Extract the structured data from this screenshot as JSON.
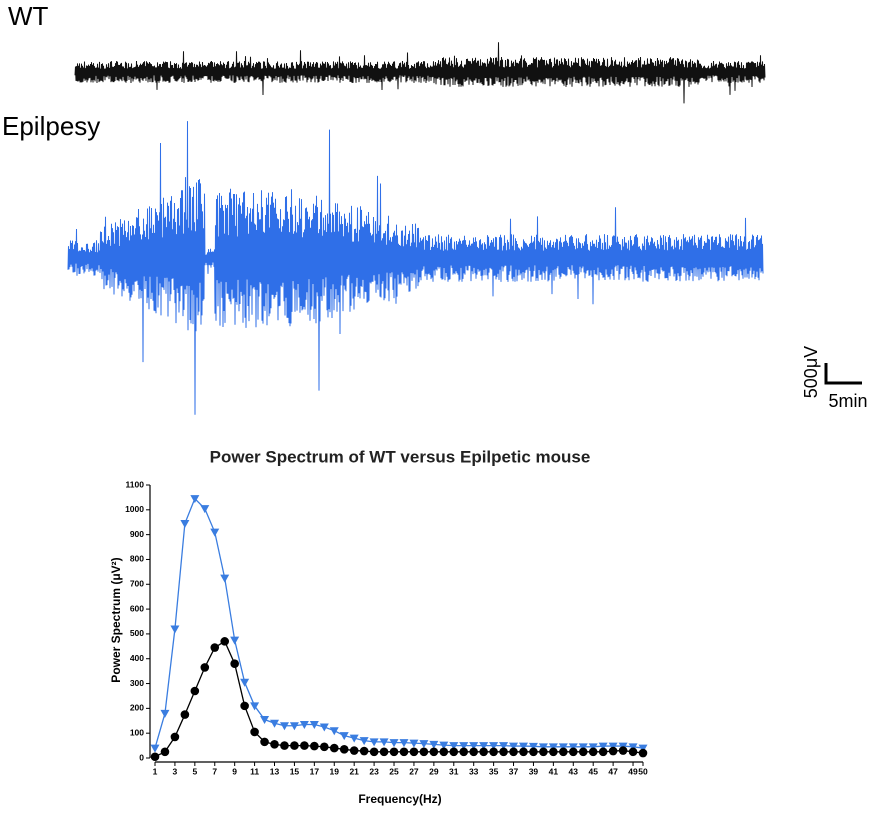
{
  "labels": {
    "wt": "WT",
    "epilepsy": "Epilpesy",
    "scale_v": "500μV",
    "scale_t": "5min"
  },
  "chart_data": {
    "type": "line",
    "title": "Power Spectrum of WT versus Epilpetic mouse",
    "x_label": "Frequency(Hz)",
    "y_label": "Power Spectrum (μV²)",
    "x": [
      1,
      2,
      3,
      4,
      5,
      6,
      7,
      8,
      9,
      10,
      11,
      12,
      13,
      14,
      15,
      16,
      17,
      18,
      19,
      20,
      21,
      22,
      23,
      24,
      25,
      26,
      27,
      28,
      29,
      30,
      31,
      32,
      33,
      34,
      35,
      36,
      37,
      38,
      39,
      40,
      41,
      42,
      43,
      44,
      45,
      46,
      47,
      48,
      49,
      50
    ],
    "xlim": [
      1,
      50
    ],
    "xticks": [
      1,
      3,
      5,
      7,
      9,
      11,
      13,
      15,
      17,
      19,
      21,
      23,
      25,
      27,
      29,
      31,
      33,
      35,
      37,
      39,
      41,
      43,
      45,
      47,
      49,
      50
    ],
    "ylim": [
      0,
      1100
    ],
    "yticks": [
      0,
      100,
      200,
      300,
      400,
      500,
      600,
      700,
      800,
      900,
      1000,
      1100
    ],
    "series": [
      {
        "color": "#3a7de0",
        "marker": "triangle-down",
        "values": [
          40,
          180,
          520,
          945,
          1045,
          1005,
          910,
          725,
          475,
          305,
          210,
          155,
          140,
          130,
          130,
          135,
          135,
          125,
          110,
          90,
          80,
          70,
          65,
          65,
          62,
          62,
          60,
          58,
          55,
          52,
          50,
          50,
          50,
          50,
          50,
          50,
          48,
          48,
          47,
          45,
          45,
          45,
          45,
          45,
          45,
          48,
          48,
          48,
          45,
          40
        ]
      },
      {
        "color": "#000000",
        "marker": "circle",
        "values": [
          5,
          25,
          85,
          175,
          270,
          365,
          445,
          470,
          380,
          210,
          105,
          65,
          55,
          50,
          50,
          50,
          48,
          45,
          40,
          35,
          30,
          28,
          25,
          25,
          25,
          25,
          25,
          25,
          25,
          25,
          25,
          25,
          25,
          25,
          25,
          25,
          25,
          25,
          25,
          25,
          25,
          25,
          25,
          25,
          25,
          25,
          28,
          30,
          25,
          20
        ]
      }
    ]
  }
}
